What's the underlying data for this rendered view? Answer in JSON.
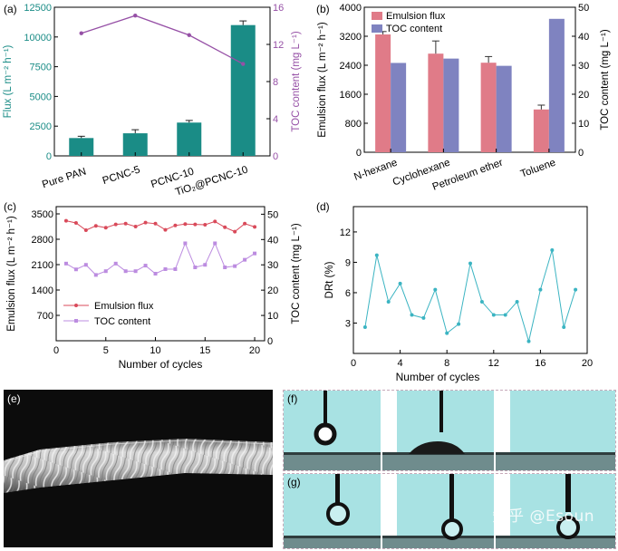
{
  "panels": {
    "a": "(a)",
    "b": "(b)",
    "c": "(c)",
    "d": "(d)",
    "e": "(e)",
    "f": "(f)",
    "g": "(g)"
  },
  "watermark": "知乎 @Esoun",
  "colors": {
    "teal": "#1a8c86",
    "purple": "#9650a6",
    "pink": "#e07b88",
    "slate": "#7f83c0",
    "red_line": "#d94a5a",
    "violet_line": "#bc8ce0",
    "cyan_line": "#3bb4c2",
    "photo_bg": "#a8e2e3"
  },
  "chart_data": [
    {
      "id": "a",
      "type": "bar",
      "categories": [
        "Pure PAN",
        "PCNC-5",
        "PCNC-10",
        "TiO₂@PCNC-10"
      ],
      "series": [
        {
          "name": "Flux",
          "values": [
            1500,
            1900,
            2800,
            11000
          ],
          "errors": [
            150,
            300,
            180,
            350
          ]
        },
        {
          "name": "TOC content",
          "type": "line",
          "values": [
            13.2,
            15.1,
            13.0,
            9.9
          ]
        }
      ],
      "ylabel": "Flux (L m⁻² h⁻¹)",
      "y2label": "TOC content (mg L⁻¹)",
      "ylim": [
        0,
        12500
      ],
      "y2lim": [
        0,
        16
      ],
      "yticks": [
        "0",
        "2500",
        "5000",
        "7500",
        "10000",
        "12500"
      ],
      "y2ticks": [
        "0",
        "4",
        "8",
        "12",
        "16"
      ]
    },
    {
      "id": "b",
      "type": "bar",
      "categories": [
        "N-hexane",
        "Cyclohexane",
        "Petroleum ether",
        "Toluene"
      ],
      "series": [
        {
          "name": "Emulsion flux",
          "values": [
            3250,
            2720,
            2470,
            1180
          ],
          "errors": [
            80,
            350,
            170,
            120
          ]
        },
        {
          "name": "TOC content",
          "values": [
            30.8,
            32.3,
            29.8,
            46.0
          ]
        }
      ],
      "ylabel": "Emulsion flux (L m⁻² h⁻¹)",
      "y2label": "TOC content (mg L⁻¹)",
      "ylim": [
        0,
        4000
      ],
      "y2lim": [
        0,
        50
      ],
      "yticks": [
        "0",
        "800",
        "1600",
        "2400",
        "3200",
        "4000"
      ],
      "y2ticks": [
        "0",
        "10",
        "20",
        "30",
        "40",
        "50"
      ],
      "legend": [
        "Emulsion flux",
        "TOC content"
      ]
    },
    {
      "id": "c",
      "type": "line",
      "x": [
        1,
        2,
        3,
        4,
        5,
        6,
        7,
        8,
        9,
        10,
        11,
        12,
        13,
        14,
        15,
        16,
        17,
        18,
        19,
        20
      ],
      "series": [
        {
          "name": "Emulsion flux",
          "axis": "left",
          "values": [
            3310,
            3250,
            3050,
            3170,
            3120,
            3210,
            3230,
            3150,
            3260,
            3230,
            3060,
            3180,
            3220,
            3210,
            3200,
            3290,
            3130,
            3010,
            3230,
            3140
          ]
        },
        {
          "name": "TOC content",
          "axis": "right",
          "values": [
            30.5,
            28.2,
            30.0,
            26.0,
            27.5,
            30.5,
            27.5,
            27.5,
            29.7,
            26.5,
            28.3,
            28.3,
            38.5,
            29.0,
            30.0,
            38.5,
            29.0,
            29.5,
            32.0,
            34.5
          ]
        }
      ],
      "xlabel": "Number of cycles",
      "ylabel": "Emulsion flux (L m⁻² h⁻¹)",
      "y2label": "TOC content (mg L⁻¹)",
      "xlim": [
        0,
        21
      ],
      "ylim": [
        0,
        3700
      ],
      "y2lim": [
        0,
        53
      ],
      "xticks": [
        "0",
        "5",
        "10",
        "15",
        "20"
      ],
      "yticks": [
        "700",
        "1400",
        "2100",
        "2800",
        "3500"
      ],
      "y2ticks": [
        "0",
        "10",
        "20",
        "30",
        "40",
        "50"
      ],
      "legend": [
        "Emulsion flux",
        "TOC content"
      ]
    },
    {
      "id": "d",
      "type": "line",
      "x": [
        1,
        2,
        3,
        4,
        5,
        6,
        7,
        8,
        9,
        10,
        11,
        12,
        13,
        14,
        15,
        16,
        17,
        18,
        19
      ],
      "series": [
        {
          "name": "DRt",
          "values": [
            2.6,
            9.7,
            5.1,
            6.9,
            3.8,
            3.5,
            6.3,
            2.0,
            2.9,
            8.9,
            5.1,
            3.8,
            3.8,
            5.1,
            1.2,
            6.3,
            10.2,
            2.6,
            6.3
          ]
        }
      ],
      "xlabel": "Number of cycles",
      "ylabel": "DRt (%)",
      "xlim": [
        0,
        20
      ],
      "ylim": [
        0,
        14.5
      ],
      "xticks": [
        "0",
        "4",
        "8",
        "12",
        "16",
        "20"
      ],
      "yticks": [
        "3",
        "6",
        "9",
        "12"
      ]
    }
  ]
}
